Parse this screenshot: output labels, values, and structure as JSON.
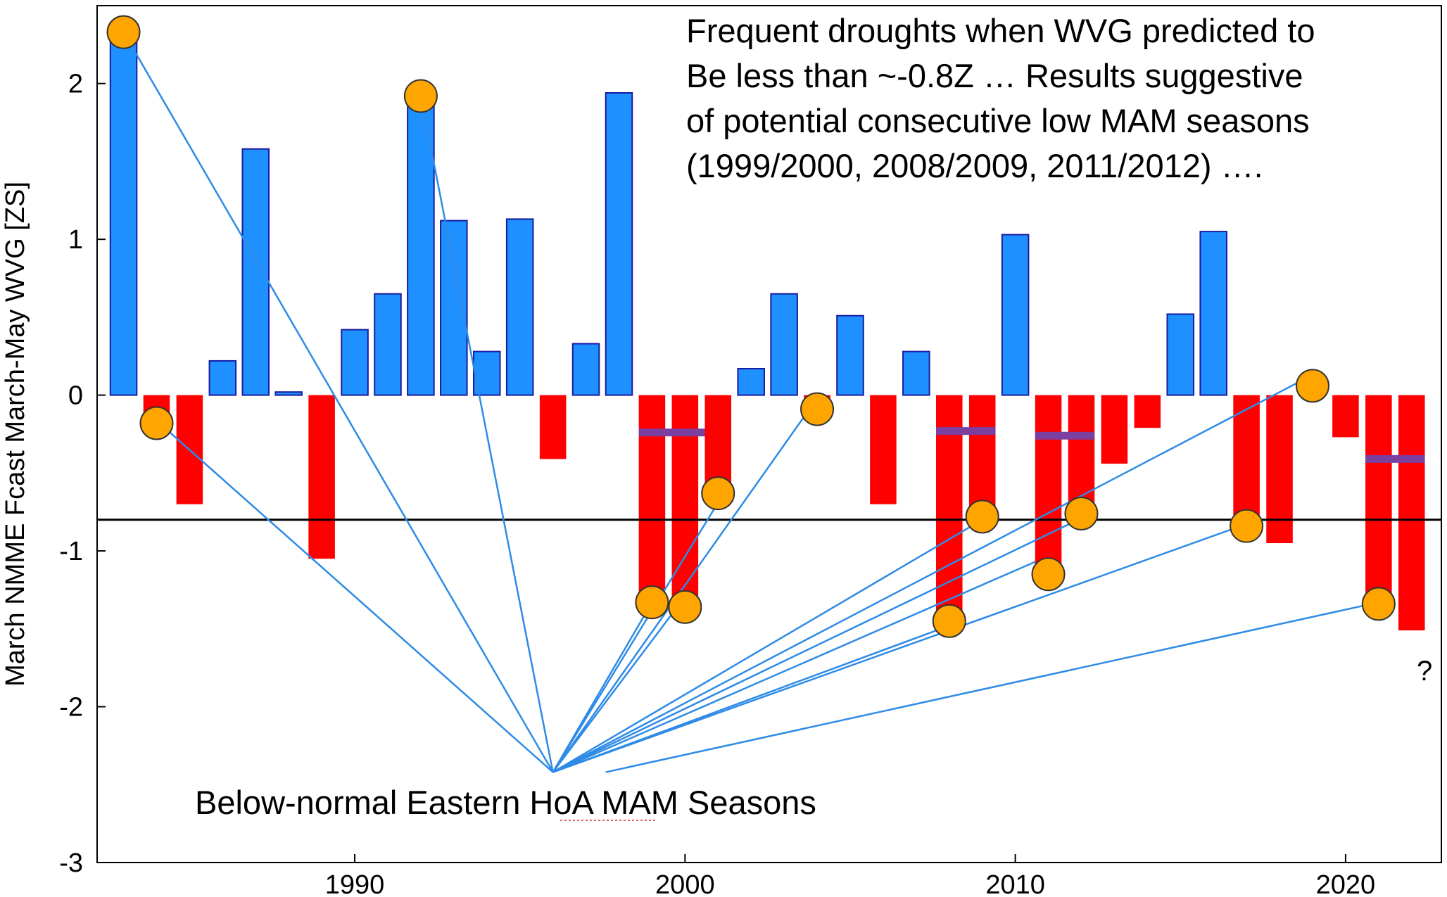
{
  "chart_data": {
    "type": "bar",
    "ylabel": "March NMME Fcast March-May WVG [ZS]",
    "xlabel": "",
    "title": "",
    "xlim": [
      1982.2,
      2022.9
    ],
    "ylim": [
      -3,
      2.5
    ],
    "xticks": [
      1990,
      2000,
      2010,
      2020
    ],
    "yticks": [
      2,
      1,
      0,
      -1,
      -2,
      -3
    ],
    "xtick_labels": [
      "1990",
      "2000",
      "2010",
      "2020"
    ],
    "ytick_labels": [
      "2",
      "1",
      "0",
      "-1",
      "-2",
      "-3"
    ],
    "positive_color": "#1e90ff",
    "positive_edge": "#1a1aa0",
    "negative_color": "#ff0000",
    "bars": [
      {
        "year": 1983,
        "value": 2.33
      },
      {
        "year": 1984,
        "value": -0.14
      },
      {
        "year": 1985,
        "value": -0.7
      },
      {
        "year": 1986,
        "value": 0.22
      },
      {
        "year": 1987,
        "value": 1.58
      },
      {
        "year": 1988,
        "value": 0.02
      },
      {
        "year": 1989,
        "value": -1.05
      },
      {
        "year": 1990,
        "value": 0.42
      },
      {
        "year": 1991,
        "value": 0.65
      },
      {
        "year": 1992,
        "value": 1.93
      },
      {
        "year": 1993,
        "value": 1.12
      },
      {
        "year": 1994,
        "value": 0.28
      },
      {
        "year": 1995,
        "value": 1.13
      },
      {
        "year": 1996,
        "value": -0.41
      },
      {
        "year": 1997,
        "value": 0.33
      },
      {
        "year": 1998,
        "value": 1.94
      },
      {
        "year": 1999,
        "value": -1.33
      },
      {
        "year": 2000,
        "value": -1.4
      },
      {
        "year": 2001,
        "value": -0.63
      },
      {
        "year": 2002,
        "value": 0.17
      },
      {
        "year": 2003,
        "value": 0.65
      },
      {
        "year": 2004,
        "value": -0.09
      },
      {
        "year": 2005,
        "value": 0.51
      },
      {
        "year": 2006,
        "value": -0.7
      },
      {
        "year": 2007,
        "value": 0.28
      },
      {
        "year": 2008,
        "value": -1.45
      },
      {
        "year": 2009,
        "value": -0.78
      },
      {
        "year": 2010,
        "value": 1.03
      },
      {
        "year": 2011,
        "value": -1.15
      },
      {
        "year": 2012,
        "value": -0.76
      },
      {
        "year": 2013,
        "value": -0.44
      },
      {
        "year": 2014,
        "value": -0.21
      },
      {
        "year": 2015,
        "value": 0.52
      },
      {
        "year": 2016,
        "value": 1.05
      },
      {
        "year": 2017,
        "value": -0.84
      },
      {
        "year": 2018,
        "value": -0.95
      },
      {
        "year": 2019,
        "value": 0.06
      },
      {
        "year": 2020,
        "value": -0.27
      },
      {
        "year": 2021,
        "value": -1.34
      },
      {
        "year": 2022,
        "value": -1.51
      }
    ],
    "dry_season_markers": [
      {
        "year": 1983,
        "value": 2.33
      },
      {
        "year": 1984,
        "value": -0.18
      },
      {
        "year": 1992,
        "value": 1.92
      },
      {
        "year": 1999,
        "value": -1.33
      },
      {
        "year": 2000,
        "value": -1.36
      },
      {
        "year": 2001,
        "value": -0.63
      },
      {
        "year": 2004,
        "value": -0.09
      },
      {
        "year": 2008,
        "value": -1.45
      },
      {
        "year": 2009,
        "value": -0.78
      },
      {
        "year": 2011,
        "value": -1.15
      },
      {
        "year": 2012,
        "value": -0.76
      },
      {
        "year": 2017,
        "value": -0.84
      },
      {
        "year": 2019,
        "value": 0.06
      },
      {
        "year": 2021,
        "value": -1.34
      }
    ],
    "marker_color": "#ffa500",
    "pair_means": [
      {
        "x_start": 1998.6,
        "x_end": 2000.6,
        "value": -0.24
      },
      {
        "x_start": 2007.6,
        "x_end": 2009.4,
        "value": -0.23
      },
      {
        "x_start": 2010.6,
        "x_end": 2012.4,
        "value": -0.26
      },
      {
        "x_start": 2020.6,
        "x_end": 2022.4,
        "value": -0.41
      }
    ],
    "pair_mean_color": "#7b3fa0",
    "threshold": -0.8,
    "connector_color": "#2e8be6",
    "connector_origin": {
      "year": 1996.0,
      "value": -2.42
    },
    "connector_origin_alt": {
      "year": 1997.6,
      "value": -2.42
    },
    "connector_targets": [
      {
        "year": 1983.0,
        "value": 2.33,
        "from": "main"
      },
      {
        "year": 1984.3,
        "value": -0.22,
        "from": "main"
      },
      {
        "year": 1992.0,
        "value": 1.92,
        "from": "main"
      },
      {
        "year": 1999.0,
        "value": -1.33,
        "from": "main"
      },
      {
        "year": 1999.8,
        "value": -1.35,
        "from": "main"
      },
      {
        "year": 2001.0,
        "value": -0.69,
        "from": "main"
      },
      {
        "year": 2004.0,
        "value": -0.02,
        "from": "main"
      },
      {
        "year": 2008.0,
        "value": -1.48,
        "from": "main"
      },
      {
        "year": 2009.0,
        "value": -0.8,
        "from": "main"
      },
      {
        "year": 2010.6,
        "value": -1.07,
        "from": "main"
      },
      {
        "year": 2012.0,
        "value": -0.79,
        "from": "main"
      },
      {
        "year": 2016.7,
        "value": -0.85,
        "from": "main"
      },
      {
        "year": 2019.0,
        "value": 0.13,
        "from": "main"
      },
      {
        "year": 2021.0,
        "value": -1.33,
        "from": "alt"
      }
    ],
    "annotation": "Frequent droughts when WVG predicted to\nBe less than ~-0.8Z … Results suggestive\nof potential consecutive low MAM seasons\n(1999/2000, 2008/2009, 2011/2012) ….",
    "bottom_label": "Below-normal Eastern HoA MAM Seasons",
    "question_mark": "?"
  }
}
